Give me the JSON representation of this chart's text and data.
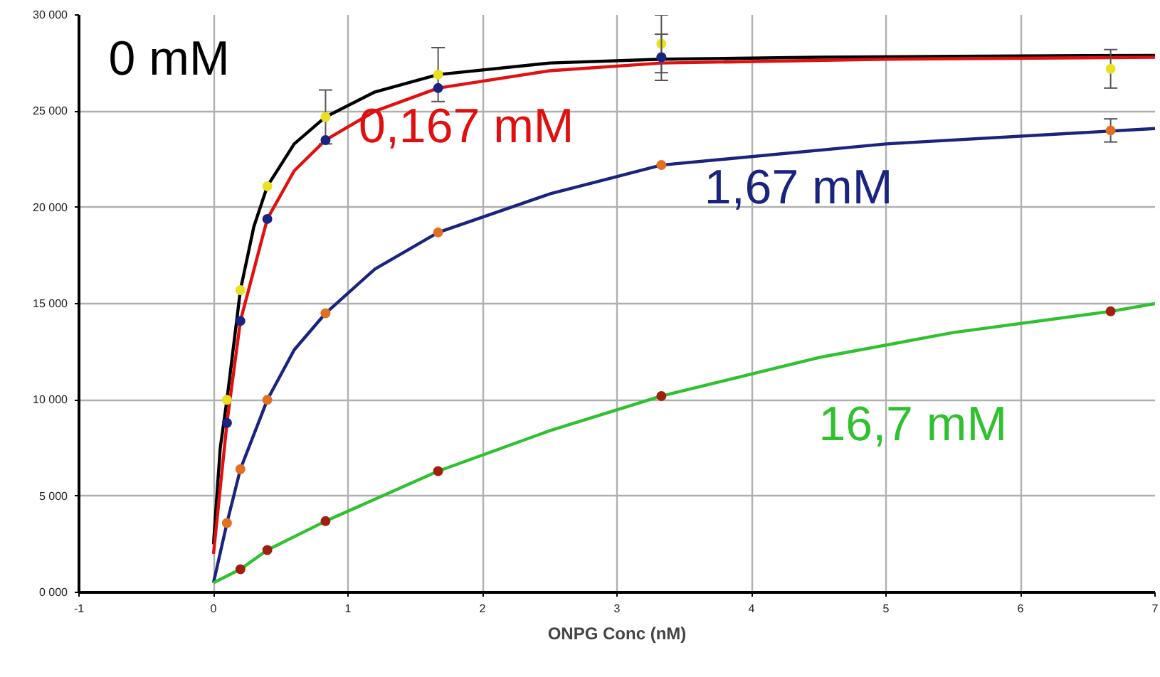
{
  "chart_data": {
    "type": "line",
    "xlabel": "ONPG Conc (nM)",
    "xlim": [
      -1,
      7
    ],
    "xticks": [
      -1,
      0,
      1,
      2,
      3,
      4,
      5,
      6,
      7
    ],
    "ylim": [
      0,
      30000
    ],
    "yticks": [
      {
        "value": 0,
        "label": "0 000"
      },
      {
        "value": 5000,
        "label": "5 000"
      },
      {
        "value": 10000,
        "label": "10 000"
      },
      {
        "value": 15000,
        "label": "15 000"
      },
      {
        "value": 20000,
        "label": "20 000"
      },
      {
        "value": 25000,
        "label": "25 000"
      },
      {
        "value": 30000,
        "label": "30 000"
      }
    ],
    "grid": true,
    "series": [
      {
        "name": "0 mM",
        "color": "#000000",
        "x": [
          0,
          0.05,
          0.1,
          0.2,
          0.3,
          0.4,
          0.6,
          0.833,
          1.2,
          1.67,
          2.5,
          3.33,
          4.5,
          5.5,
          7
        ],
        "values": [
          2500,
          7500,
          10000,
          15700,
          19000,
          21100,
          23300,
          24700,
          26000,
          26900,
          27500,
          27700,
          27800,
          27850,
          27900
        ]
      },
      {
        "name": "0,167 mM",
        "color": "#e01010",
        "x": [
          0,
          0.1,
          0.2,
          0.4,
          0.6,
          0.833,
          1.2,
          1.67,
          2.5,
          3.33,
          5,
          7
        ],
        "values": [
          2000,
          8800,
          14100,
          19400,
          21900,
          23500,
          25000,
          26200,
          27100,
          27500,
          27700,
          27800
        ]
      },
      {
        "name": "1,67 mM",
        "color": "#1a237e",
        "x": [
          0,
          0.1,
          0.2,
          0.4,
          0.6,
          0.833,
          1.2,
          1.67,
          2.5,
          3.33,
          5,
          7
        ],
        "values": [
          500,
          3600,
          6400,
          10000,
          12600,
          14500,
          16800,
          18700,
          20700,
          22200,
          23300,
          24100
        ]
      },
      {
        "name": "16,7 mM",
        "color": "#30c030",
        "x": [
          0,
          0.2,
          0.4,
          0.833,
          1.67,
          2.5,
          3.33,
          4.5,
          5.5,
          6.67,
          7
        ],
        "values": [
          500,
          1200,
          2200,
          3700,
          6300,
          8400,
          10200,
          12200,
          13500,
          14600,
          15000
        ]
      },
      {
        "type": "scatter",
        "color": "#e8e020",
        "marker": "circle",
        "x": [
          0.1,
          0.2,
          0.4,
          0.833,
          1.67,
          3.33,
          6.67
        ],
        "values": [
          10000,
          15700,
          21100,
          24700,
          26900,
          28500,
          27200
        ],
        "errors": [
          null,
          null,
          null,
          1400,
          1400,
          1500,
          1000
        ]
      },
      {
        "type": "scatter",
        "color": "#1a237e",
        "marker": "circle",
        "x": [
          0.1,
          0.2,
          0.4,
          0.833,
          1.67,
          3.33
        ],
        "values": [
          8800,
          14100,
          19400,
          23500,
          26200,
          27800
        ],
        "errors": [
          null,
          null,
          null,
          null,
          null,
          1200
        ]
      },
      {
        "type": "scatter",
        "color": "#e07020",
        "marker": "circle",
        "x": [
          0.1,
          0.2,
          0.4,
          0.833,
          1.67,
          3.33,
          6.67
        ],
        "values": [
          3600,
          6400,
          10000,
          14500,
          18700,
          22200,
          24000
        ],
        "errors": [
          null,
          null,
          null,
          null,
          null,
          null,
          600
        ]
      },
      {
        "type": "scatter",
        "color": "#a02010",
        "marker": "circle",
        "x": [
          0.2,
          0.4,
          0.833,
          1.67,
          3.33,
          6.67
        ],
        "values": [
          1200,
          2200,
          3700,
          6300,
          10200,
          14600
        ]
      }
    ]
  }
}
